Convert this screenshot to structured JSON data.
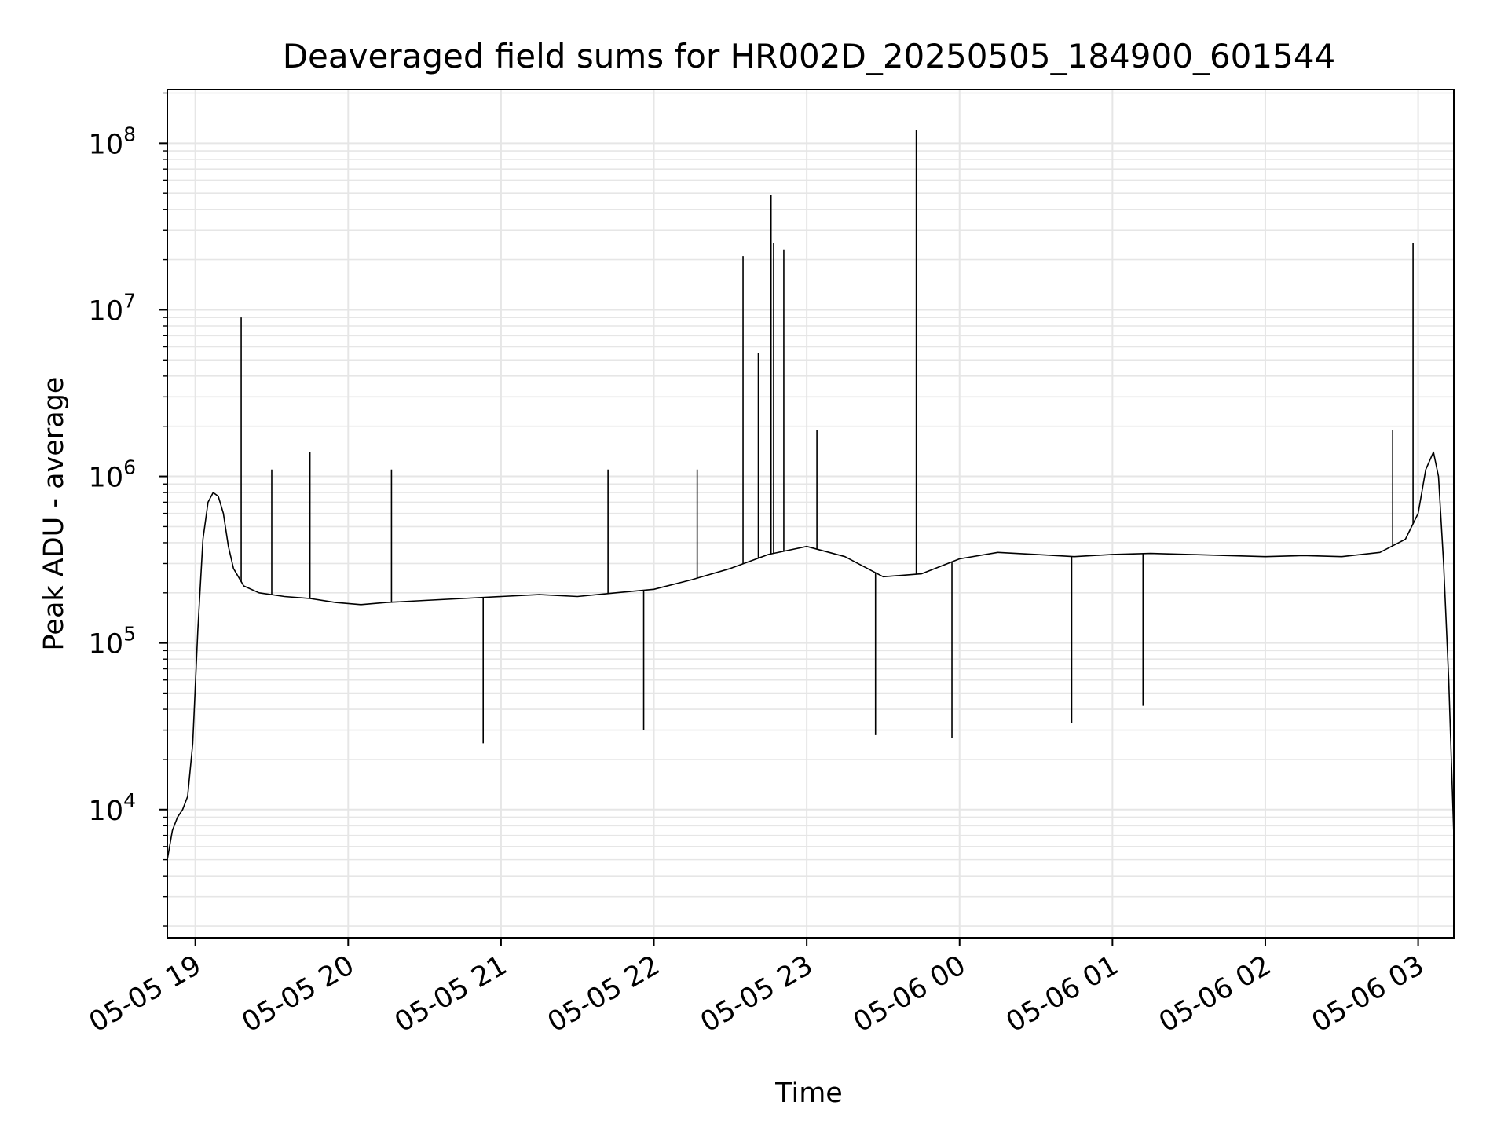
{
  "chart_data": {
    "type": "line",
    "title": "Deaveraged field sums for HR002D_20250505_184900_601544",
    "xlabel": "Time",
    "ylabel": "Peak ADU - average",
    "y_scale": "log",
    "ylim": [
      1700,
      210000000
    ],
    "xlim": [
      "2025-05-05 18:49:00",
      "2025-05-06 03:14:00"
    ],
    "grid": true,
    "x_ticks": [
      {
        "t": "2025-05-05 19:00",
        "label": "05-05 19"
      },
      {
        "t": "2025-05-05 20:00",
        "label": "05-05 20"
      },
      {
        "t": "2025-05-05 21:00",
        "label": "05-05 21"
      },
      {
        "t": "2025-05-05 22:00",
        "label": "05-05 22"
      },
      {
        "t": "2025-05-05 23:00",
        "label": "05-05 23"
      },
      {
        "t": "2025-05-06 00:00",
        "label": "05-06 00"
      },
      {
        "t": "2025-05-06 01:00",
        "label": "05-06 01"
      },
      {
        "t": "2025-05-06 02:00",
        "label": "05-06 02"
      },
      {
        "t": "2025-05-06 03:00",
        "label": "05-06 03"
      }
    ],
    "y_ticks": [
      {
        "value": 10000,
        "base": "10",
        "exp": "4"
      },
      {
        "value": 100000,
        "base": "10",
        "exp": "5"
      },
      {
        "value": 1000000,
        "base": "10",
        "exp": "6"
      },
      {
        "value": 10000000,
        "base": "10",
        "exp": "7"
      },
      {
        "value": 100000000,
        "base": "10",
        "exp": "8"
      }
    ],
    "series": [
      {
        "color": "#000000",
        "x": [
          "2025-05-05 18:49:00",
          "2025-05-05 18:51:00",
          "2025-05-05 18:53:00",
          "2025-05-05 18:55:00",
          "2025-05-05 18:57:00",
          "2025-05-05 18:59:00",
          "2025-05-05 19:01:00",
          "2025-05-05 19:03:00",
          "2025-05-05 19:05:00",
          "2025-05-05 19:07:00",
          "2025-05-05 19:09:00",
          "2025-05-05 19:11:00",
          "2025-05-05 19:13:00",
          "2025-05-05 19:15:00",
          "2025-05-05 19:19:00",
          "2025-05-05 19:25:00",
          "2025-05-05 19:35:00",
          "2025-05-05 19:45:00",
          "2025-05-05 19:55:00",
          "2025-05-05 20:05:00",
          "2025-05-05 20:15:00",
          "2025-05-05 20:30:00",
          "2025-05-05 20:45:00",
          "2025-05-05 21:00:00",
          "2025-05-05 21:15:00",
          "2025-05-05 21:30:00",
          "2025-05-05 21:45:00",
          "2025-05-05 22:00:00",
          "2025-05-05 22:15:00",
          "2025-05-05 22:30:00",
          "2025-05-05 22:45:00",
          "2025-05-05 23:00:00",
          "2025-05-05 23:15:00",
          "2025-05-05 23:30:00",
          "2025-05-05 23:45:00",
          "2025-05-06 00:00:00",
          "2025-05-06 00:15:00",
          "2025-05-06 00:30:00",
          "2025-05-06 00:45:00",
          "2025-05-06 01:00:00",
          "2025-05-06 01:15:00",
          "2025-05-06 01:30:00",
          "2025-05-06 01:45:00",
          "2025-05-06 02:00:00",
          "2025-05-06 02:15:00",
          "2025-05-06 02:30:00",
          "2025-05-06 02:45:00",
          "2025-05-06 02:55:00",
          "2025-05-06 03:00:00",
          "2025-05-06 03:03:00",
          "2025-05-06 03:06:00",
          "2025-05-06 03:08:00",
          "2025-05-06 03:10:00",
          "2025-05-06 03:12:00",
          "2025-05-06 03:14:00"
        ],
        "y": [
          5000,
          7500,
          9000,
          10000,
          12000,
          25000,
          120000,
          420000,
          700000,
          800000,
          760000,
          600000,
          380000,
          280000,
          220000,
          200000,
          190000,
          185000,
          175000,
          170000,
          175000,
          180000,
          185000,
          190000,
          195000,
          190000,
          200000,
          210000,
          240000,
          280000,
          340000,
          380000,
          330000,
          250000,
          260000,
          320000,
          350000,
          340000,
          330000,
          340000,
          345000,
          340000,
          335000,
          330000,
          335000,
          330000,
          350000,
          420000,
          600000,
          1100000,
          1400000,
          1000000,
          300000,
          60000,
          7000
        ]
      }
    ],
    "spikes": [
      {
        "t": "2025-05-05 19:18:00",
        "value": 9000000
      },
      {
        "t": "2025-05-05 19:30:00",
        "value": 1100000
      },
      {
        "t": "2025-05-05 19:45:00",
        "value": 1400000
      },
      {
        "t": "2025-05-05 20:17:00",
        "value": 1100000
      },
      {
        "t": "2025-05-05 20:53:00",
        "value": 25000
      },
      {
        "t": "2025-05-05 21:42:00",
        "value": 1100000
      },
      {
        "t": "2025-05-05 21:56:00",
        "value": 30000
      },
      {
        "t": "2025-05-05 22:17:00",
        "value": 1100000
      },
      {
        "t": "2025-05-05 22:35:00",
        "value": 21000000
      },
      {
        "t": "2025-05-05 22:41:00",
        "value": 5500000
      },
      {
        "t": "2025-05-05 22:46:00",
        "value": 49000000
      },
      {
        "t": "2025-05-05 22:47:00",
        "value": 25000000
      },
      {
        "t": "2025-05-05 22:51:00",
        "value": 23000000
      },
      {
        "t": "2025-05-05 23:04:00",
        "value": 1900000
      },
      {
        "t": "2025-05-05 23:27:00",
        "value": 28000
      },
      {
        "t": "2025-05-05 23:43:00",
        "value": 120000000
      },
      {
        "t": "2025-05-05 23:57:00",
        "value": 27000
      },
      {
        "t": "2025-05-06 00:44:00",
        "value": 33000
      },
      {
        "t": "2025-05-06 01:12:00",
        "value": 42000
      },
      {
        "t": "2025-05-06 02:50:00",
        "value": 1900000
      },
      {
        "t": "2025-05-06 02:58:00",
        "value": 25000000
      }
    ]
  }
}
